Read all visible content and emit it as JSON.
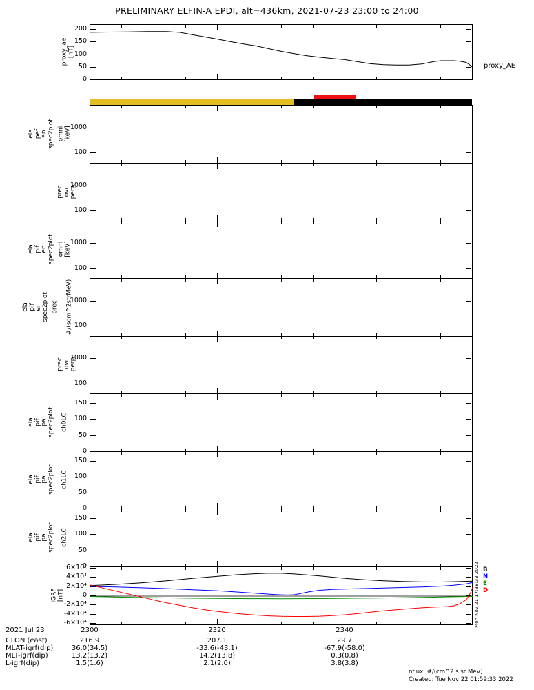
{
  "title": "PRELIMINARY ELFIN-A EPDI, alt=436km, 2021-07-23 23:00 to 24:00",
  "side_timestamp": "Mon Nov 21 17:38:33 2022",
  "xaxis": {
    "range_minutes": [
      0,
      60
    ],
    "start_time": "23:00",
    "major_step": 20,
    "minor_step": 5,
    "major_ticks": [
      {
        "t": 0,
        "label": "2300"
      },
      {
        "t": 20,
        "label": "2320"
      },
      {
        "t": 40,
        "label": "2340"
      },
      {
        "t": 60,
        "label": ""
      }
    ]
  },
  "zone_bar": {
    "segments": [
      {
        "color": "#E2BE23",
        "t0": 0,
        "t1": 32.1
      },
      {
        "color": "#000000",
        "t0": 32.1,
        "t1": 60
      }
    ],
    "overlay": {
      "color": "#EE1111",
      "t0": 35.1,
      "t1": 41.7
    }
  },
  "footer": {
    "date": "2021 Jul 23",
    "rows": [
      {
        "label": "GLON (east)",
        "values": [
          "216.9",
          "207.1",
          "29.7"
        ]
      },
      {
        "label": "MLAT-igrf(dip)",
        "values": [
          "36.0(34.5)",
          "-33.6(-43.1)",
          "-67.9(-58.0)"
        ]
      },
      {
        "label": "MLT-igrf(dip)",
        "values": [
          "13.2(13.2)",
          "14.2(13.8)",
          "0.3(0.8)"
        ]
      },
      {
        "label": "L-igrf(dip)",
        "values": [
          "1.5(1.6)",
          "2.1(2.0)",
          "3.8(3.8)"
        ]
      }
    ],
    "nflux_note": "nflux: #/(cm^2 s sr MeV)",
    "created": "Created: Tue Nov 22 01:59:33 2022"
  },
  "chart_data": [
    {
      "id": "proxy_ae",
      "type": "line",
      "ylabel": "proxy_ae\n[nT]",
      "right_label": "proxy_AE",
      "yscale": "linear",
      "ylim": [
        0,
        220
      ],
      "yticks": [
        {
          "v": 200,
          "label": "200"
        },
        {
          "v": 150,
          "label": "150"
        },
        {
          "v": 100,
          "label": "100"
        },
        {
          "v": 50,
          "label": "50"
        },
        {
          "v": 0,
          "label": "0"
        }
      ],
      "series": [
        {
          "name": "proxy_AE",
          "color": "#000000",
          "points": [
            [
              0,
              190
            ],
            [
              3,
              191
            ],
            [
              6,
              192
            ],
            [
              9,
              193
            ],
            [
              12,
              193
            ],
            [
              14,
              190
            ],
            [
              16,
              181
            ],
            [
              18,
              172
            ],
            [
              20,
              163
            ],
            [
              22,
              153
            ],
            [
              24,
              144
            ],
            [
              26,
              136
            ],
            [
              28,
              125
            ],
            [
              30,
              114
            ],
            [
              32,
              105
            ],
            [
              34,
              97
            ],
            [
              36,
              91
            ],
            [
              38,
              86
            ],
            [
              40,
              81
            ],
            [
              42,
              73
            ],
            [
              44,
              65
            ],
            [
              46,
              61
            ],
            [
              48,
              60
            ],
            [
              50,
              60
            ],
            [
              52,
              64
            ],
            [
              53,
              69
            ],
            [
              54,
              74
            ],
            [
              55,
              77
            ],
            [
              56,
              77
            ],
            [
              57,
              77
            ],
            [
              58,
              75
            ],
            [
              59,
              70
            ],
            [
              59.5,
              61
            ],
            [
              60,
              51
            ]
          ]
        }
      ]
    },
    {
      "id": "ela_pef_en_spec2plot_omni",
      "type": "spectrogram",
      "empty": true,
      "ylabel_outer": "ela\npef\nen\nspec2plot",
      "ylabel_inner": "omni\n[keV]",
      "yscale": "log",
      "ylim": [
        40,
        7900
      ],
      "yticks": [
        {
          "v": 1000,
          "label": "1000"
        },
        {
          "v": 100,
          "label": "100"
        }
      ]
    },
    {
      "id": "ela_pef_en_prec_ovr_perp",
      "type": "spectrogram",
      "empty": true,
      "ylabel_outer": "prec\novr\nperp",
      "yscale": "log",
      "ylim": [
        40,
        7900
      ],
      "yticks": [
        {
          "v": 1000,
          "label": "1000"
        },
        {
          "v": 100,
          "label": "100"
        }
      ]
    },
    {
      "id": "ela_pif_en_spec2plot_omni",
      "type": "spectrogram",
      "empty": true,
      "ylabel_outer": "ela\npif\nen\nspec2plot",
      "ylabel_inner": "omni\n[keV]",
      "yscale": "log",
      "ylim": [
        40,
        7900
      ],
      "yticks": [
        {
          "v": 1000,
          "label": "1000"
        },
        {
          "v": 100,
          "label": "100"
        }
      ]
    },
    {
      "id": "ela_pif_en_spec2plot_prec",
      "type": "spectrogram",
      "empty": true,
      "ylabel_outer": "ela\npif\nen\nspec2plot",
      "ylabel_inner": "prec",
      "units_label": "#/(scm^2strMeV)",
      "yscale": "log",
      "ylim": [
        40,
        7900
      ],
      "yticks": [
        {
          "v": 1000,
          "label": "1000"
        },
        {
          "v": 100,
          "label": "100"
        }
      ]
    },
    {
      "id": "ela_pif_prec_ovr_perp",
      "type": "spectrogram",
      "empty": true,
      "ylabel_outer": "prec\novr\nperp",
      "yscale": "log",
      "ylim": [
        40,
        7900
      ],
      "yticks": [
        {
          "v": 1000,
          "label": "1000"
        },
        {
          "v": 100,
          "label": "100"
        }
      ]
    },
    {
      "id": "ela_pif_pa_spec2plot_ch0LC",
      "type": "spectrogram",
      "empty": true,
      "ylabel_outer": "ela\npif\npa\nspec2plot",
      "ylabel_inner": "ch0LC",
      "yscale": "linear",
      "ylim": [
        0,
        180
      ],
      "yticks": [
        {
          "v": 150,
          "label": "150"
        },
        {
          "v": 100,
          "label": "100"
        },
        {
          "v": 50,
          "label": "50"
        },
        {
          "v": 0,
          "label": "0"
        }
      ]
    },
    {
      "id": "ela_pif_pa_spec2plot_ch1LC",
      "type": "spectrogram",
      "empty": true,
      "ylabel_outer": "ela\npif\npa\nspec2plot",
      "ylabel_inner": "ch1LC",
      "yscale": "linear",
      "ylim": [
        0,
        180
      ],
      "yticks": [
        {
          "v": 150,
          "label": "150"
        },
        {
          "v": 100,
          "label": "100"
        },
        {
          "v": 50,
          "label": "50"
        },
        {
          "v": 0,
          "label": "0"
        }
      ]
    },
    {
      "id": "ela_pif_pa_spec2plot_ch2LC",
      "type": "spectrogram",
      "empty": true,
      "ylabel_outer": "ela\npif\npa\nspec2plot",
      "ylabel_inner": "ch2LC",
      "yscale": "linear",
      "ylim": [
        0,
        180
      ],
      "yticks": [
        {
          "v": 150,
          "label": "150"
        },
        {
          "v": 100,
          "label": "100"
        },
        {
          "v": 50,
          "label": "50"
        },
        {
          "v": 0,
          "label": "0"
        }
      ]
    },
    {
      "id": "igrf",
      "type": "line",
      "ylabel": "IGRF\n[nT]",
      "yscale": "linear",
      "ylim": [
        -63000,
        63000
      ],
      "zero_line": true,
      "yticks": [
        {
          "v": 60000,
          "label": "6×10⁴"
        },
        {
          "v": 40000,
          "label": "4×10⁴"
        },
        {
          "v": 20000,
          "label": "2×10⁴"
        },
        {
          "v": 0,
          "label": "0"
        },
        {
          "v": -20000,
          "label": "-2×10⁴"
        },
        {
          "v": -40000,
          "label": "-4×10⁴"
        },
        {
          "v": -60000,
          "label": "-6×10⁴"
        }
      ],
      "legend": [
        {
          "ch": "B",
          "color": "#000000"
        },
        {
          "ch": "N",
          "color": "#0000FF"
        },
        {
          "ch": "E",
          "color": "#009000"
        },
        {
          "ch": "D",
          "color": "#FF0000"
        }
      ],
      "series": [
        {
          "name": "igrf_b",
          "color": "#000000",
          "points": [
            [
              0,
              23000
            ],
            [
              4,
              25500
            ],
            [
              8,
              29000
            ],
            [
              12,
              33500
            ],
            [
              16,
              38500
            ],
            [
              20,
              43000
            ],
            [
              23,
              46500
            ],
            [
              26,
              48800
            ],
            [
              28,
              49800
            ],
            [
              30,
              49600
            ],
            [
              32,
              48200
            ],
            [
              34,
              46200
            ],
            [
              36,
              43800
            ],
            [
              38,
              41200
            ],
            [
              40,
              38600
            ],
            [
              43,
              35600
            ],
            [
              46,
              33300
            ],
            [
              49,
              31900
            ],
            [
              52,
              30900
            ],
            [
              55,
              30800
            ],
            [
              58,
              31600
            ],
            [
              60,
              32600
            ]
          ]
        },
        {
          "name": "igrf_n",
          "color": "#0000FF",
          "points": [
            [
              0,
              21000
            ],
            [
              4,
              19800
            ],
            [
              8,
              18200
            ],
            [
              12,
              16300
            ],
            [
              16,
              14000
            ],
            [
              20,
              11500
            ],
            [
              23,
              9000
            ],
            [
              25,
              7200
            ],
            [
              27,
              5200
            ],
            [
              29,
              3400
            ],
            [
              30,
              2800
            ],
            [
              31,
              2400
            ],
            [
              32,
              3000
            ],
            [
              33,
              5500
            ],
            [
              34,
              8500
            ],
            [
              35,
              11000
            ],
            [
              36,
              12800
            ],
            [
              38,
              14500
            ],
            [
              40,
              15500
            ],
            [
              44,
              17000
            ],
            [
              48,
              18300
            ],
            [
              52,
              19900
            ],
            [
              55,
              21600
            ],
            [
              57,
              23600
            ],
            [
              59,
              26500
            ],
            [
              60,
              29500
            ]
          ]
        },
        {
          "name": "igrf_e",
          "color": "#009000",
          "points": [
            [
              0,
              -800
            ],
            [
              5,
              -2200
            ],
            [
              10,
              -3300
            ],
            [
              15,
              -4300
            ],
            [
              20,
              -5000
            ],
            [
              25,
              -5400
            ],
            [
              30,
              -5500
            ],
            [
              35,
              -5200
            ],
            [
              40,
              -4700
            ],
            [
              45,
              -4000
            ],
            [
              50,
              -3100
            ],
            [
              55,
              -2000
            ],
            [
              60,
              -600
            ]
          ]
        },
        {
          "name": "igrf_d",
          "color": "#FF0000",
          "points": [
            [
              0,
              24000
            ],
            [
              2,
              17500
            ],
            [
              4,
              11000
            ],
            [
              6,
              4500
            ],
            [
              8,
              -2000
            ],
            [
              10,
              -8500
            ],
            [
              12,
              -14500
            ],
            [
              14,
              -20000
            ],
            [
              16,
              -25000
            ],
            [
              18,
              -29500
            ],
            [
              20,
              -33500
            ],
            [
              22,
              -36500
            ],
            [
              24,
              -39200
            ],
            [
              26,
              -41200
            ],
            [
              28,
              -42900
            ],
            [
              30,
              -43900
            ],
            [
              32,
              -44300
            ],
            [
              34,
              -44300
            ],
            [
              36,
              -43600
            ],
            [
              38,
              -42300
            ],
            [
              40,
              -40500
            ],
            [
              42,
              -38000
            ],
            [
              44,
              -35000
            ],
            [
              46,
              -32000
            ],
            [
              48,
              -29500
            ],
            [
              50,
              -27300
            ],
            [
              52,
              -25400
            ],
            [
              54,
              -23900
            ],
            [
              56,
              -22600
            ],
            [
              57,
              -21200
            ],
            [
              58,
              -16500
            ],
            [
              59,
              -7500
            ],
            [
              59.5,
              3000
            ],
            [
              60,
              18500
            ]
          ]
        }
      ]
    }
  ]
}
